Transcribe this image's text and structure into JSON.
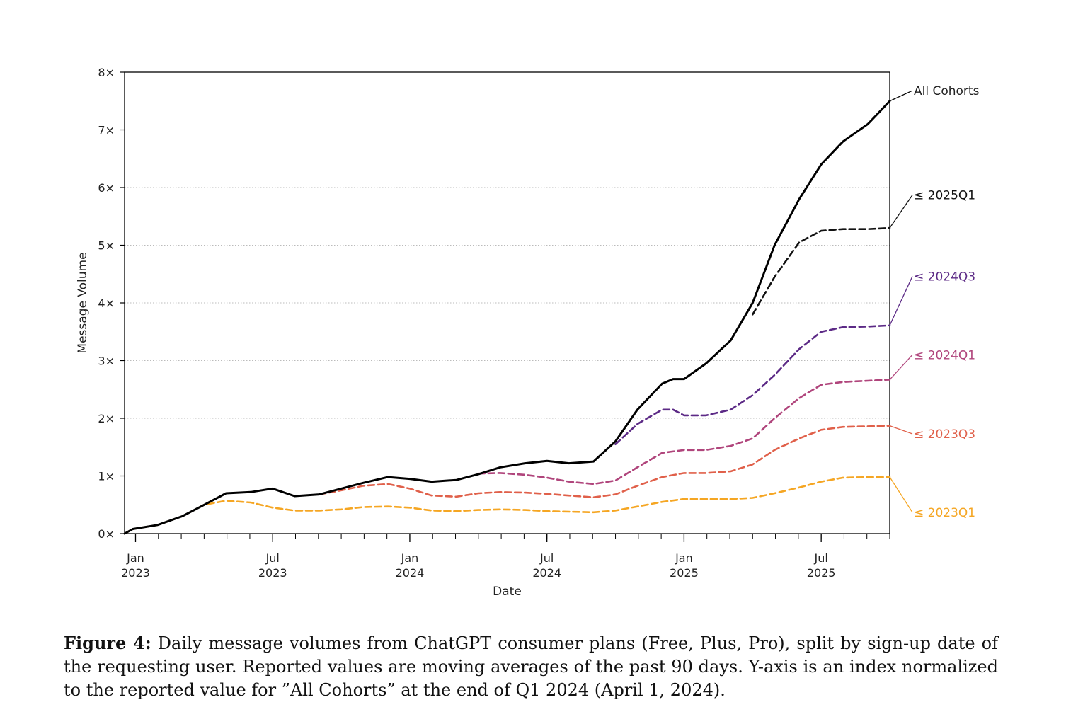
{
  "chart_data": {
    "type": "line",
    "title": "",
    "xlabel": "Date",
    "ylabel": "Message Volume",
    "ylim": [
      0,
      8
    ],
    "xlim": [
      2022.96,
      2025.75
    ],
    "grid": "horizontal dotted",
    "y_ticks": [
      {
        "value": 0,
        "label": "0×"
      },
      {
        "value": 1,
        "label": "1×"
      },
      {
        "value": 2,
        "label": "2×"
      },
      {
        "value": 3,
        "label": "3×"
      },
      {
        "value": 4,
        "label": "4×"
      },
      {
        "value": 5,
        "label": "5×"
      },
      {
        "value": 6,
        "label": "6×"
      },
      {
        "value": 7,
        "label": "7×"
      },
      {
        "value": 8,
        "label": "8×"
      }
    ],
    "x_ticks": [
      {
        "value": 2023.0,
        "month": "Jan",
        "year": "2023"
      },
      {
        "value": 2023.5,
        "month": "Jul",
        "year": "2023"
      },
      {
        "value": 2024.0,
        "month": "Jan",
        "year": "2024"
      },
      {
        "value": 2024.5,
        "month": "Jul",
        "year": "2024"
      },
      {
        "value": 2025.0,
        "month": "Jan",
        "year": "2025"
      },
      {
        "value": 2025.5,
        "month": "Jul",
        "year": "2025"
      }
    ],
    "series": [
      {
        "name": "≤ 2023Q1",
        "color": "#f5a623",
        "dashed": true,
        "label_value": 0.37,
        "x": [
          2022.96,
          2022.99,
          2023.08,
          2023.17,
          2023.25,
          2023.33,
          2023.42,
          2023.5,
          2023.58,
          2023.67,
          2023.75,
          2023.83,
          2023.92,
          2024.0,
          2024.08,
          2024.17,
          2024.25,
          2024.33,
          2024.42,
          2024.5,
          2024.58,
          2024.67,
          2024.75,
          2024.83,
          2024.92,
          2025.0,
          2025.08,
          2025.17,
          2025.25,
          2025.33,
          2025.42,
          2025.5,
          2025.58,
          2025.67,
          2025.75
        ],
        "values": [
          0.0,
          0.08,
          0.15,
          0.3,
          0.5,
          0.57,
          0.54,
          0.45,
          0.4,
          0.4,
          0.42,
          0.46,
          0.47,
          0.45,
          0.4,
          0.39,
          0.41,
          0.42,
          0.41,
          0.39,
          0.38,
          0.37,
          0.4,
          0.47,
          0.55,
          0.6,
          0.6,
          0.6,
          0.62,
          0.7,
          0.8,
          0.9,
          0.97,
          0.98,
          0.98
        ]
      },
      {
        "name": "≤ 2023Q3",
        "color": "#e0604a",
        "dashed": true,
        "label_value": 1.73,
        "x": [
          2023.67,
          2023.75,
          2023.83,
          2023.92,
          2024.0,
          2024.08,
          2024.17,
          2024.25,
          2024.33,
          2024.42,
          2024.5,
          2024.58,
          2024.67,
          2024.75,
          2024.83,
          2024.92,
          2025.0,
          2025.08,
          2025.17,
          2025.25,
          2025.33,
          2025.42,
          2025.5,
          2025.58,
          2025.67,
          2025.75
        ],
        "values": [
          0.68,
          0.75,
          0.83,
          0.86,
          0.78,
          0.66,
          0.64,
          0.7,
          0.72,
          0.71,
          0.69,
          0.66,
          0.63,
          0.68,
          0.83,
          0.98,
          1.05,
          1.05,
          1.08,
          1.2,
          1.45,
          1.65,
          1.8,
          1.85,
          1.86,
          1.87
        ]
      },
      {
        "name": "≤ 2024Q1",
        "color": "#b0457c",
        "dashed": true,
        "label_value": 3.1,
        "x": [
          2024.25,
          2024.33,
          2024.42,
          2024.5,
          2024.58,
          2024.67,
          2024.75,
          2024.83,
          2024.92,
          2025.0,
          2025.08,
          2025.17,
          2025.25,
          2025.33,
          2025.42,
          2025.5,
          2025.58,
          2025.67,
          2025.75
        ],
        "values": [
          1.04,
          1.05,
          1.02,
          0.97,
          0.9,
          0.86,
          0.92,
          1.15,
          1.4,
          1.45,
          1.45,
          1.52,
          1.65,
          2.0,
          2.35,
          2.58,
          2.63,
          2.65,
          2.67
        ]
      },
      {
        "name": "≤ 2024Q3",
        "color": "#5c2a86",
        "dashed": true,
        "label_value": 4.46,
        "x": [
          2024.75,
          2024.83,
          2024.92,
          2024.96,
          2025.0,
          2025.08,
          2025.17,
          2025.25,
          2025.33,
          2025.42,
          2025.5,
          2025.58,
          2025.67,
          2025.75
        ],
        "values": [
          1.55,
          1.9,
          2.15,
          2.15,
          2.05,
          2.05,
          2.15,
          2.4,
          2.75,
          3.2,
          3.5,
          3.58,
          3.59,
          3.61
        ]
      },
      {
        "name": "≤ 2025Q1",
        "color": "#111111",
        "dashed": true,
        "label_value": 5.87,
        "x": [
          2025.25,
          2025.33,
          2025.42,
          2025.5,
          2025.58,
          2025.67,
          2025.75
        ],
        "values": [
          3.8,
          4.45,
          5.05,
          5.25,
          5.28,
          5.28,
          5.3
        ]
      },
      {
        "name": "All Cohorts",
        "color": "#000000",
        "dashed": false,
        "label_value": 7.68,
        "x": [
          2022.96,
          2022.99,
          2023.08,
          2023.17,
          2023.25,
          2023.33,
          2023.42,
          2023.5,
          2023.58,
          2023.67,
          2023.75,
          2023.83,
          2023.92,
          2024.0,
          2024.08,
          2024.17,
          2024.25,
          2024.33,
          2024.42,
          2024.5,
          2024.58,
          2024.67,
          2024.75,
          2024.83,
          2024.92,
          2024.96,
          2025.0,
          2025.08,
          2025.17,
          2025.25,
          2025.33,
          2025.42,
          2025.5,
          2025.58,
          2025.67,
          2025.75
        ],
        "values": [
          0.0,
          0.08,
          0.15,
          0.3,
          0.5,
          0.7,
          0.72,
          0.78,
          0.65,
          0.68,
          0.78,
          0.88,
          0.98,
          0.95,
          0.9,
          0.93,
          1.03,
          1.15,
          1.22,
          1.26,
          1.22,
          1.25,
          1.6,
          2.15,
          2.6,
          2.68,
          2.68,
          2.95,
          3.35,
          4.0,
          5.0,
          5.8,
          6.4,
          6.8,
          7.1,
          7.5
        ]
      }
    ]
  },
  "caption": {
    "label": "Figure 4:",
    "text": " Daily message volumes from ChatGPT consumer plans (Free, Plus, Pro), split by sign-up date of the requesting user. Reported values are moving averages of the past 90 days. Y-axis is an index normalized to the reported value for ”All Cohorts” at the end of Q1 2024 (April 1, 2024)."
  }
}
